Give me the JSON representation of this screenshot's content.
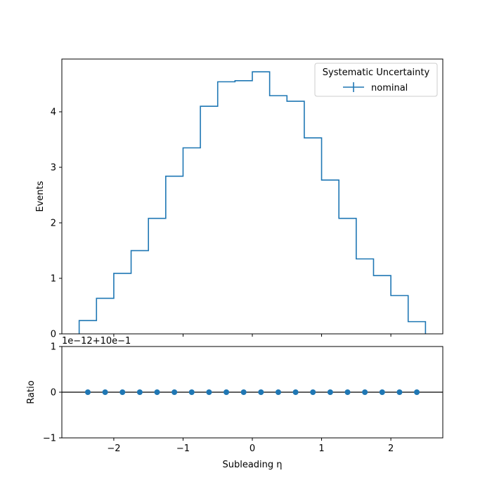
{
  "chart_data": {
    "type": "histogram",
    "top_panel": {
      "ylabel": "Events",
      "ylim": [
        0,
        4.95
      ],
      "yticks": [
        0,
        1,
        2,
        3,
        4
      ],
      "ytick_labels": [
        "0",
        "1",
        "2",
        "3",
        "4"
      ],
      "bin_edges": [
        -2.5,
        -2.25,
        -2.0,
        -1.75,
        -1.5,
        -1.25,
        -1.0,
        -0.75,
        -0.5,
        -0.25,
        0.0,
        0.25,
        0.5,
        0.75,
        1.0,
        1.25,
        1.5,
        1.75,
        2.0,
        2.25,
        2.5
      ],
      "series": [
        {
          "name": "nominal",
          "color": "#1f77b4",
          "values": [
            0.24,
            0.64,
            1.09,
            1.5,
            2.08,
            2.84,
            3.35,
            4.1,
            4.54,
            4.56,
            4.72,
            4.29,
            4.19,
            3.53,
            2.77,
            2.08,
            1.35,
            1.05,
            0.69,
            0.22
          ]
        }
      ],
      "legend": {
        "title": "Systematic Uncertainty",
        "entries": [
          "nominal"
        ],
        "placement": "top-right"
      }
    },
    "bottom_panel": {
      "ylabel": "Ratio",
      "offset_text": "1e−12+10e−1",
      "ylim": [
        -1,
        1
      ],
      "yticks": [
        -1,
        0,
        1
      ],
      "ytick_labels": [
        "−1",
        "0",
        "1"
      ],
      "reference_line": 0,
      "x": [
        -2.375,
        -2.125,
        -1.875,
        -1.625,
        -1.375,
        -1.125,
        -0.875,
        -0.625,
        -0.375,
        -0.125,
        0.125,
        0.375,
        0.625,
        0.875,
        1.125,
        1.375,
        1.625,
        1.875,
        2.125,
        2.375
      ],
      "values": [
        0,
        0,
        0,
        0,
        0,
        0,
        0,
        0,
        0,
        0,
        0,
        0,
        0,
        0,
        0,
        0,
        0,
        0,
        0,
        0
      ],
      "marker_color": "#1f77b4"
    },
    "xlabel": "Subleading η",
    "xlim": [
      -2.75,
      2.75
    ],
    "xticks": [
      -2,
      -1,
      0,
      1,
      2
    ],
    "xtick_labels": [
      "−2",
      "−1",
      "0",
      "1",
      "2"
    ],
    "grid": false
  }
}
